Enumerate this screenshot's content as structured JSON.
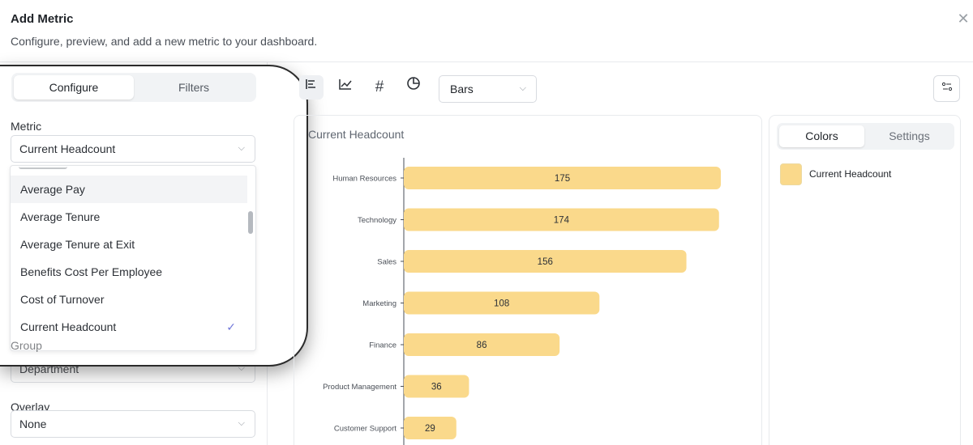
{
  "header": {
    "title": "Add Metric",
    "subtitle": "Configure, preview, and add a new metric to your dashboard.",
    "close_icon": "close-icon"
  },
  "left": {
    "tabs": [
      "Configure",
      "Filters"
    ],
    "metric_label": "Metric",
    "metric_value": "Current Headcount",
    "dropdown_items": [
      "Average Pay",
      "Average Tenure",
      "Average Tenure at Exit",
      "Benefits Cost Per Employee",
      "Cost of Turnover",
      "Current Headcount"
    ],
    "selected_item": "Current Headcount",
    "group_label": "Group",
    "group_value": "Department",
    "overlay_label": "Overlay",
    "overlay_value": "None"
  },
  "toolbar": {
    "icons": [
      "bar-chart-icon",
      "line-chart-icon",
      "number-icon",
      "pie-chart-icon"
    ],
    "chart_type": "Bars",
    "options_icon": "sliders-icon"
  },
  "side": {
    "tabs": [
      "Colors",
      "Settings"
    ],
    "legend_label": "Current Headcount"
  },
  "colors": {
    "bar": "#fad98b",
    "accent": "#6f76d9"
  },
  "chart_data": {
    "type": "bar",
    "orientation": "horizontal",
    "title": "Current Headcount",
    "categories": [
      "Human Resources",
      "Technology",
      "Sales",
      "Marketing",
      "Finance",
      "Product Management",
      "Customer Support"
    ],
    "values": [
      175,
      174,
      156,
      108,
      86,
      36,
      29
    ],
    "series": [
      {
        "name": "Current Headcount",
        "values": [
          175,
          174,
          156,
          108,
          86,
          36,
          29
        ]
      }
    ],
    "grid": false
  }
}
